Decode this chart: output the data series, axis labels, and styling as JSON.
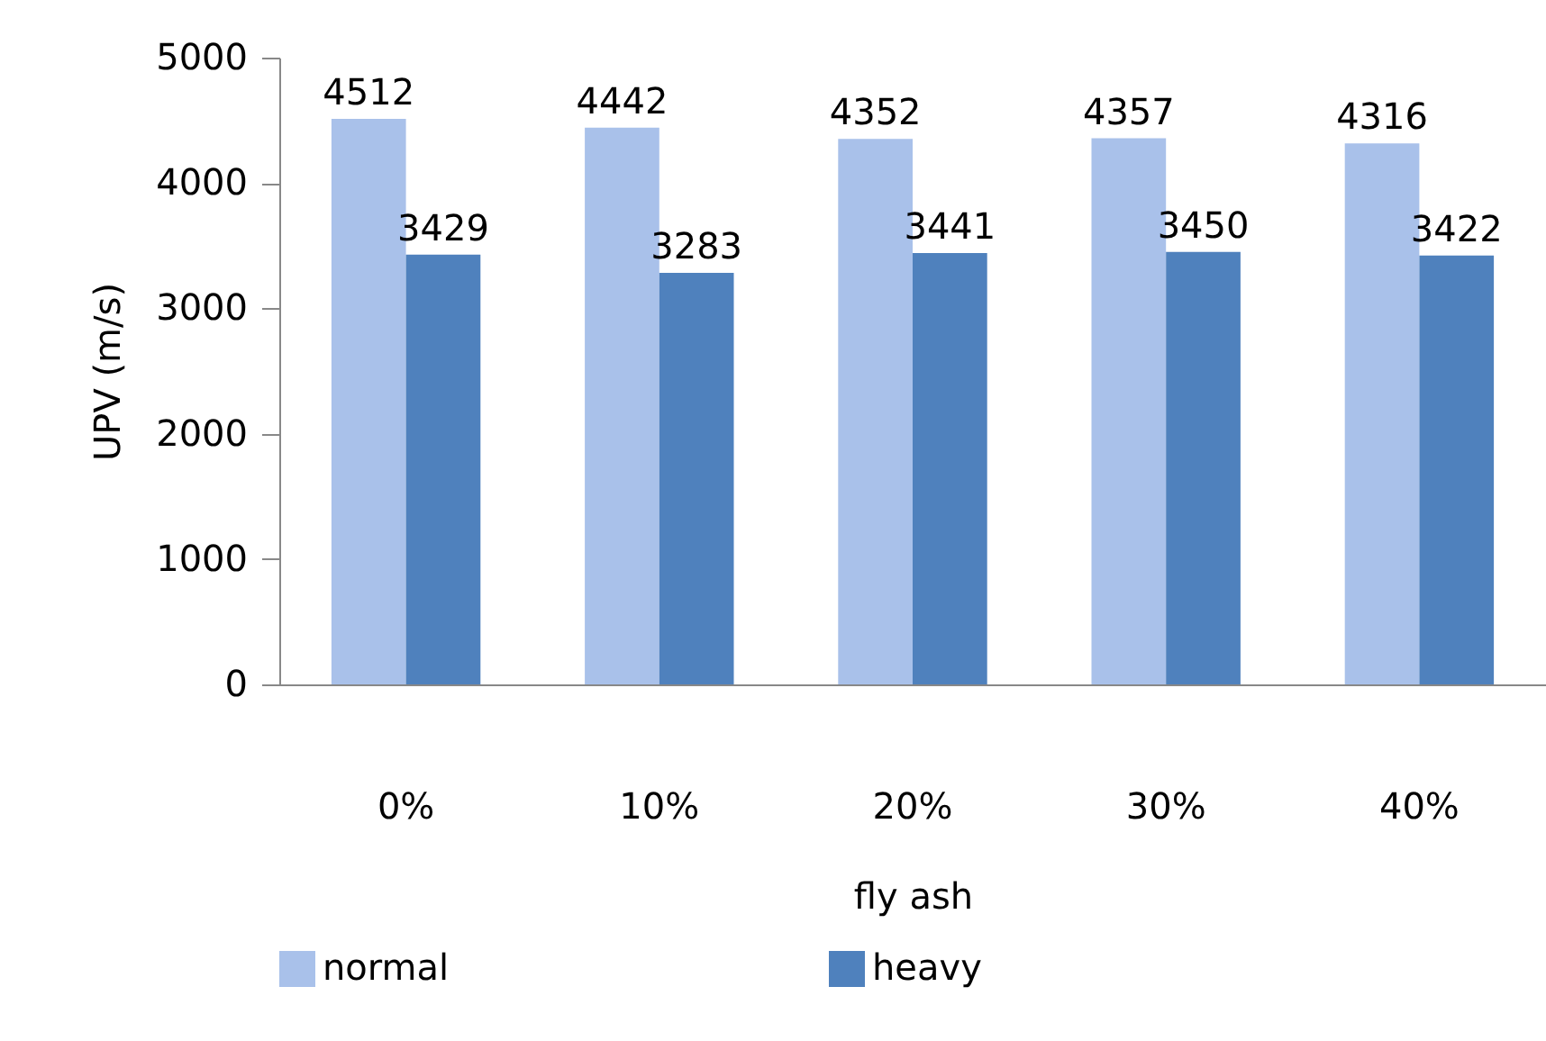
{
  "chart_data": {
    "type": "bar",
    "xlabel": "fly ash",
    "ylabel": "UPV (m/s)",
    "categories": [
      "0%",
      "10%",
      "20%",
      "30%",
      "40%"
    ],
    "series": [
      {
        "name": "normal",
        "color": "#a9c1ea",
        "values": [
          4512,
          4442,
          4352,
          4357,
          4316
        ]
      },
      {
        "name": "heavy",
        "color": "#4f81bd",
        "values": [
          3429,
          3283,
          3441,
          3450,
          3422
        ]
      }
    ],
    "ylim": [
      0,
      5000
    ],
    "yticks": [
      0,
      1000,
      2000,
      3000,
      4000,
      5000
    ],
    "grid": false,
    "data_labels": true,
    "legend": "bottom"
  }
}
